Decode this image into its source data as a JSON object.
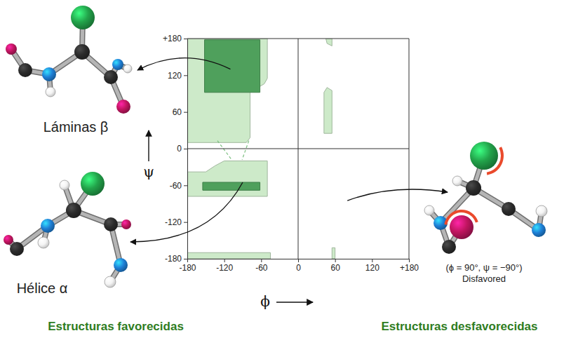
{
  "chart_data": {
    "type": "area",
    "xlim": [
      -180,
      180
    ],
    "ylim": [
      -180,
      180
    ],
    "xticks": [
      -180,
      -120,
      -60,
      0,
      60,
      120,
      {
        "value": 180,
        "label": "+180"
      }
    ],
    "yticks": [
      -180,
      -120,
      -60,
      0,
      60,
      120,
      {
        "value": 180,
        "label": "+180"
      }
    ],
    "xlabel": "ϕ",
    "ylabel": "ψ",
    "grid": false,
    "series": [
      {
        "color": "#cdeac9",
        "x": [
          -180,
          -50,
          -50,
          -55,
          -65,
          -78,
          -78,
          -84,
          -180
        ],
        "y": [
          180,
          180,
          115,
          106,
          100,
          95,
          18,
          10,
          10
        ]
      },
      {
        "color": "#4fa05c",
        "x": [
          -152,
          -62,
          -62,
          -152
        ],
        "y": [
          178,
          178,
          92,
          92
        ]
      },
      {
        "color": "#cdeac9",
        "x": [
          -180,
          -150,
          -135,
          -120,
          -50,
          -50,
          -180
        ],
        "y": [
          -38,
          -38,
          -28,
          -20,
          -20,
          -78,
          -78
        ]
      },
      {
        "color": "#4fa05c",
        "x": [
          -155,
          -62,
          -62,
          -155
        ],
        "y": [
          -55,
          -55,
          -68,
          -68
        ]
      },
      {
        "color": "#cdeac9",
        "x": [
          42,
          47,
          55,
          55,
          42
        ],
        "y": [
          92,
          100,
          95,
          25,
          25
        ]
      },
      {
        "color": "#cdeac9",
        "x": [
          45,
          55,
          55,
          47
        ],
        "y": [
          180,
          180,
          168,
          172
        ]
      },
      {
        "color": "#cdeac9",
        "x": [
          -180,
          -45,
          -45,
          -180
        ],
        "y": [
          -170,
          -170,
          -180,
          -180
        ]
      },
      {
        "color": "#cdeac9",
        "x": [
          55,
          60,
          60,
          55
        ],
        "y": [
          -162,
          -162,
          -180,
          -180
        ]
      }
    ],
    "connections": [
      {
        "x": [
          -131,
          -108
        ],
        "y": [
          13,
          -18
        ],
        "line_style": "dashed"
      },
      {
        "x": [
          -80,
          -91
        ],
        "y": [
          13,
          -18
        ],
        "line_style": "dashed"
      }
    ],
    "annotations": [
      {
        "text": "Láminas β",
        "x": -110,
        "y": 130
      },
      {
        "text": "Hélice α",
        "x": -90,
        "y": -55
      },
      {
        "text": "(ϕ = 90°, ψ = −90°)",
        "subtext": "Disfavored",
        "x": 80,
        "y": -85
      }
    ],
    "captions": [
      "Estructuras favorecidas",
      "Estructuras desfavorecidas"
    ]
  }
}
